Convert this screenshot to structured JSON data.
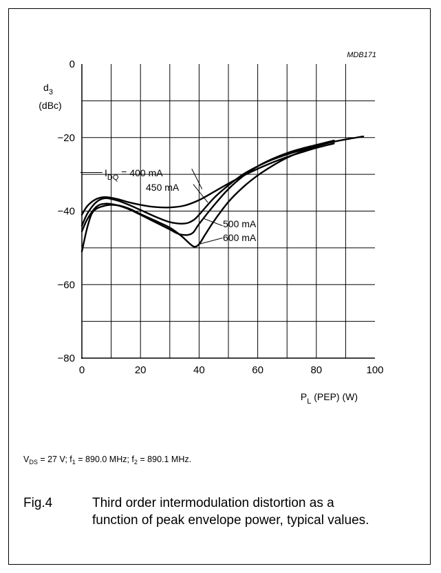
{
  "figure_code": "MDB171",
  "conditions": {
    "vds_label": "V",
    "vds_sub": "DS",
    "vds_value": " = 27 V; f",
    "f1_sub": "1",
    "f1_value": " = 890.0 MHz; f",
    "f2_sub": "2",
    "f2_value": " = 890.1 MHz."
  },
  "caption": {
    "fig_label": "Fig.4",
    "text": "Third order intermodulation distortion as a function of peak envelope power, typical values."
  },
  "chart_data": {
    "type": "line",
    "title": "",
    "xlabel": {
      "main": "P",
      "sub": "L",
      "rest": " (PEP) (W)"
    },
    "ylabel": {
      "main": "d",
      "sub": "3",
      "unit": "(dBc)"
    },
    "xlim": [
      0,
      100
    ],
    "ylim": [
      -80,
      0
    ],
    "x_ticks": [
      0,
      20,
      40,
      60,
      80,
      100
    ],
    "y_ticks": [
      0,
      -20,
      -40,
      -60,
      -80
    ],
    "grid": true,
    "series": [
      {
        "name": "I_DQ = 400 mA",
        "points": [
          [
            0,
            -41
          ],
          [
            2,
            -38.5
          ],
          [
            5,
            -36.7
          ],
          [
            8,
            -36.2
          ],
          [
            12,
            -36.7
          ],
          [
            16,
            -37.6
          ],
          [
            20,
            -38.3
          ],
          [
            25,
            -38.9
          ],
          [
            30,
            -39
          ],
          [
            35,
            -38.5
          ],
          [
            40,
            -37
          ],
          [
            45,
            -34.8
          ],
          [
            50,
            -32.5
          ],
          [
            55,
            -30.4
          ],
          [
            60,
            -28.5
          ],
          [
            65,
            -26.8
          ],
          [
            70,
            -25.3
          ],
          [
            75,
            -24
          ],
          [
            80,
            -22.8
          ],
          [
            86,
            -21.6
          ]
        ]
      },
      {
        "name": "450 mA",
        "points": [
          [
            0,
            -44
          ],
          [
            2,
            -40.5
          ],
          [
            5,
            -37.5
          ],
          [
            8,
            -36.5
          ],
          [
            12,
            -37.1
          ],
          [
            16,
            -38.3
          ],
          [
            20,
            -39.7
          ],
          [
            25,
            -41.5
          ],
          [
            30,
            -43
          ],
          [
            35,
            -43.4
          ],
          [
            38,
            -42.5
          ],
          [
            40,
            -41
          ],
          [
            45,
            -36.5
          ],
          [
            50,
            -33
          ],
          [
            55,
            -30
          ],
          [
            60,
            -27.8
          ],
          [
            65,
            -26
          ],
          [
            70,
            -24.6
          ],
          [
            75,
            -23.4
          ],
          [
            80,
            -22.3
          ],
          [
            86,
            -21
          ]
        ]
      },
      {
        "name": "500 mA",
        "points": [
          [
            0,
            -45.5
          ],
          [
            2,
            -42
          ],
          [
            5,
            -38.8
          ],
          [
            8,
            -38
          ],
          [
            12,
            -38.4
          ],
          [
            16,
            -39.5
          ],
          [
            20,
            -41
          ],
          [
            25,
            -43
          ],
          [
            30,
            -45
          ],
          [
            33,
            -46.2
          ],
          [
            36,
            -46.5
          ],
          [
            38,
            -45.8
          ],
          [
            40,
            -43.5
          ],
          [
            45,
            -38.5
          ],
          [
            50,
            -34
          ],
          [
            55,
            -30.5
          ],
          [
            60,
            -27.8
          ],
          [
            65,
            -25.8
          ],
          [
            70,
            -24.2
          ],
          [
            75,
            -23
          ],
          [
            80,
            -22
          ],
          [
            86,
            -20.8
          ]
        ]
      },
      {
        "name": "600 mA",
        "points": [
          [
            0,
            -51
          ],
          [
            2,
            -44
          ],
          [
            4,
            -40
          ],
          [
            8,
            -38.5
          ],
          [
            12,
            -38.4
          ],
          [
            16,
            -39.3
          ],
          [
            20,
            -40.8
          ],
          [
            25,
            -42.6
          ],
          [
            30,
            -44.5
          ],
          [
            34,
            -46.8
          ],
          [
            37,
            -49
          ],
          [
            38.5,
            -49.7
          ],
          [
            40,
            -49
          ],
          [
            42,
            -46.5
          ],
          [
            45,
            -42.8
          ],
          [
            50,
            -37.5
          ],
          [
            55,
            -33.5
          ],
          [
            60,
            -30.3
          ],
          [
            65,
            -27.7
          ],
          [
            70,
            -25.5
          ],
          [
            75,
            -23.8
          ],
          [
            80,
            -22.4
          ],
          [
            85,
            -21.3
          ],
          [
            90,
            -20.5
          ],
          [
            96,
            -19.7
          ]
        ]
      }
    ],
    "annotations": [
      {
        "id": "400",
        "main": "I",
        "sub": "DQ",
        "rest": " = 400 mA"
      },
      {
        "id": "450",
        "main": "450 mA"
      },
      {
        "id": "500",
        "main": "500 mA"
      },
      {
        "id": "600",
        "main": "600 mA"
      }
    ]
  }
}
